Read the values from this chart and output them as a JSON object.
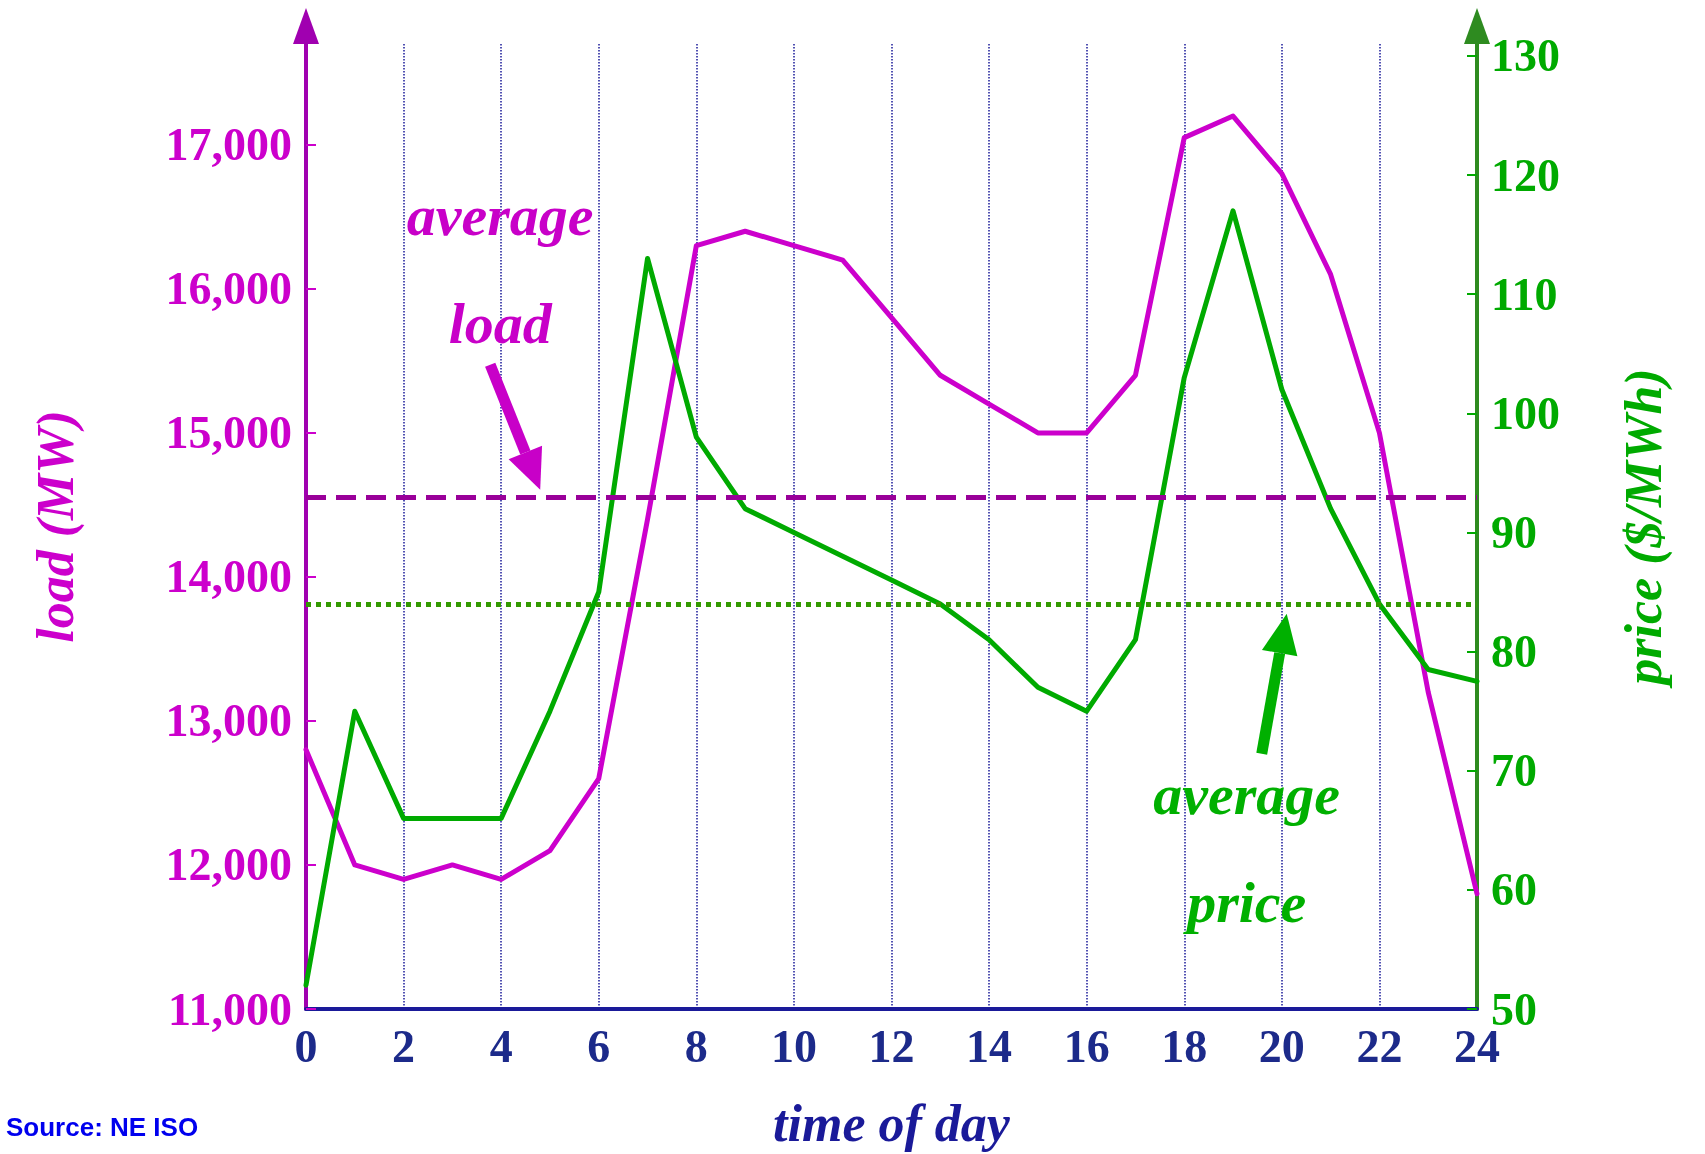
{
  "chart_data": {
    "type": "line",
    "xlabel": "time of day",
    "ylabel": "load (MW)",
    "y2label": "price ($/MWh)",
    "x": [
      0,
      1,
      2,
      3,
      4,
      5,
      6,
      7,
      8,
      9,
      10,
      11,
      12,
      13,
      14,
      15,
      16,
      17,
      18,
      19,
      20,
      21,
      22,
      23,
      24
    ],
    "series": [
      {
        "color": "#cc00cc",
        "values": [
          12800,
          12000,
          11900,
          12000,
          11900,
          12100,
          12600,
          14400,
          16300,
          16400,
          16300,
          16200,
          15800,
          15400,
          15200,
          15000,
          15000,
          15400,
          17050,
          17200,
          16800,
          16100,
          15000,
          13200,
          11800
        ]
      },
      {
        "color": "#00aa00",
        "axis": "y2",
        "values": [
          52,
          75,
          66,
          66,
          66,
          75,
          85,
          113,
          98,
          92,
          90,
          88,
          86,
          84,
          81,
          77,
          75,
          81,
          103,
          117,
          102,
          92,
          84,
          78.5,
          77.5
        ]
      }
    ],
    "xlim": [
      0,
      24
    ],
    "xticks": [
      0,
      2,
      4,
      6,
      8,
      10,
      12,
      14,
      16,
      18,
      20,
      22,
      24
    ],
    "ylim": [
      11000,
      17700
    ],
    "yticks": [
      {
        "value": 11000,
        "label": "11,000"
      },
      {
        "value": 12000,
        "label": "12,000"
      },
      {
        "value": 13000,
        "label": "13,000"
      },
      {
        "value": 14000,
        "label": "14,000"
      },
      {
        "value": 15000,
        "label": "15,000"
      },
      {
        "value": 16000,
        "label": "16,000"
      },
      {
        "value": 17000,
        "label": "17,000"
      }
    ],
    "y2lim": [
      50,
      131
    ],
    "y2ticks": [
      50,
      60,
      70,
      80,
      90,
      100,
      110,
      120,
      130
    ],
    "ref_lines": [
      {
        "axis": "y",
        "value": 14550,
        "color": "#990099",
        "line_style": "dashed"
      },
      {
        "axis": "y2",
        "value": 84,
        "color": "#339900",
        "line_style": "dotted"
      }
    ],
    "annotations": [
      {
        "text": "average load",
        "x": 4.8,
        "y": 14550
      },
      {
        "text": "average price",
        "x": 20.1,
        "y": 13800
      },
      "Source: NE ISO"
    ],
    "grid": "x",
    "marker": "none",
    "line_style": "solid"
  }
}
